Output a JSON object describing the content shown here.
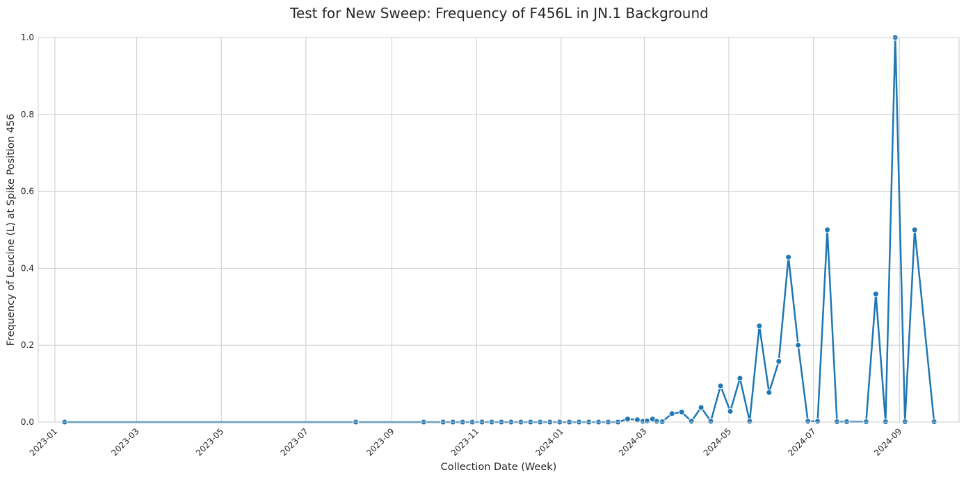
{
  "chart_data": {
    "type": "line",
    "title": "Test for New Sweep: Frequency of F456L in JN.1 Background",
    "xlabel": "Collection Date (Week)",
    "ylabel": "Frequency of Leucine (L) at Spike Position 456",
    "x_ticks": [
      "2023-01",
      "2023-03",
      "2023-05",
      "2023-07",
      "2023-09",
      "2023-11",
      "2024-01",
      "2024-03",
      "2024-05",
      "2024-07",
      "2024-09"
    ],
    "y_ticks": [
      "0.0",
      "0.2",
      "0.4",
      "0.6",
      "0.8",
      "1.0"
    ],
    "xlim": [
      "2022-12-20",
      "2024-10-14"
    ],
    "ylim": [
      0,
      1
    ],
    "grid": true,
    "color": "#1f77b4",
    "series": [
      {
        "x": [
          "2023-01-08",
          "2023-08-06",
          "2023-09-24",
          "2023-10-08",
          "2023-10-15",
          "2023-10-22",
          "2023-10-29",
          "2023-11-05",
          "2023-11-12",
          "2023-11-19",
          "2023-11-26",
          "2023-12-03",
          "2023-12-10",
          "2023-12-17",
          "2023-12-24",
          "2023-12-31",
          "2024-01-07",
          "2024-01-14",
          "2024-01-21",
          "2024-01-28",
          "2024-02-04",
          "2024-02-11",
          "2024-02-18",
          "2024-02-25",
          "2024-02-29",
          "2024-03-03",
          "2024-03-07",
          "2024-03-10",
          "2024-03-14",
          "2024-03-21",
          "2024-03-28",
          "2024-04-04",
          "2024-04-11",
          "2024-04-18",
          "2024-04-25",
          "2024-05-02",
          "2024-05-09",
          "2024-05-16",
          "2024-05-23",
          "2024-05-30",
          "2024-06-06",
          "2024-06-13",
          "2024-06-20",
          "2024-06-27",
          "2024-07-04",
          "2024-07-11",
          "2024-07-18",
          "2024-07-25",
          "2024-08-08",
          "2024-08-15",
          "2024-08-22",
          "2024-08-29",
          "2024-09-05",
          "2024-09-12",
          "2024-09-26"
        ],
        "y": [
          0,
          0,
          0,
          0,
          0,
          0,
          0,
          0,
          0,
          0,
          0,
          0,
          0,
          0,
          0,
          0,
          0,
          0,
          0,
          0,
          0,
          0,
          0.008,
          0.006,
          0.002,
          0.003,
          0.008,
          0.002,
          0.001,
          0.022,
          0.026,
          0.002,
          0.038,
          0.002,
          0.094,
          0.028,
          0.114,
          0.002,
          0.25,
          0.077,
          0.158,
          0.429,
          0.2,
          0.002,
          0.002,
          0.5,
          0.001,
          0.001,
          0.001,
          0.333,
          0.001,
          1.0,
          0.001,
          0.5,
          0.001
        ]
      }
    ]
  }
}
